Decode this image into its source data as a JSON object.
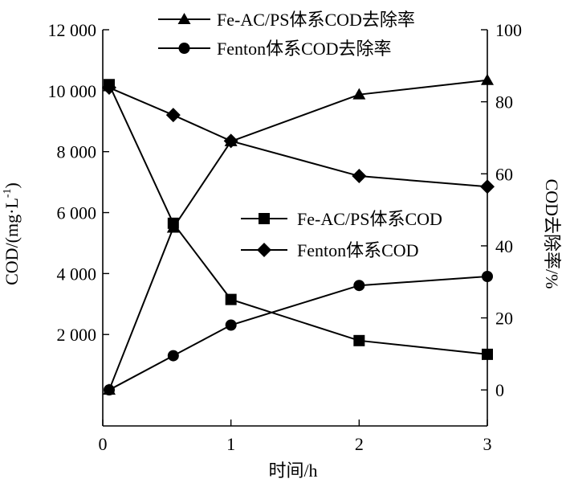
{
  "chart_data": {
    "type": "line",
    "xlabel": "时间/h",
    "ylabel_left": "COD/(mg·L",
    "ylabel_left_sup": "-1",
    "ylabel_left_tail": ")",
    "ylabel_right": "COD去除率/%",
    "xlim": [
      0,
      3
    ],
    "ylim_left": [
      -1000,
      12000
    ],
    "ylim_right": [
      -10,
      100
    ],
    "x_ticks": [
      0,
      1,
      2,
      3
    ],
    "x_tick_labels": [
      "0",
      "1",
      "2",
      "3"
    ],
    "y_left_ticks": [
      2000,
      4000,
      6000,
      8000,
      10000,
      12000
    ],
    "y_left_tick_labels": [
      "2 000",
      "4 000",
      "6 000",
      "8 000",
      "10 000",
      "12 000"
    ],
    "y_right_ticks": [
      0,
      20,
      40,
      60,
      80,
      100
    ],
    "y_right_tick_labels": [
      "0",
      "20",
      "40",
      "60",
      "80",
      "100"
    ],
    "grid": false,
    "series": [
      {
        "name": "Fe-AC/PS体系COD去除率",
        "axis": "right",
        "marker": "triangle",
        "x": [
          0.05,
          0.55,
          1,
          2,
          3
        ],
        "y": [
          0,
          45,
          69,
          82,
          86
        ]
      },
      {
        "name": "Fenton体系COD去除率",
        "axis": "right",
        "marker": "circle",
        "x": [
          0.05,
          0.55,
          1,
          2,
          3
        ],
        "y": [
          0,
          9.5,
          18,
          29,
          31.5
        ]
      },
      {
        "name": "Fe-AC/PS体系COD",
        "axis": "left",
        "marker": "square",
        "x": [
          0.05,
          0.55,
          1,
          2,
          3
        ],
        "y": [
          10200,
          5650,
          3150,
          1800,
          1350
        ]
      },
      {
        "name": "Fenton体系COD",
        "axis": "left",
        "marker": "diamond",
        "x": [
          0.05,
          0.55,
          1,
          2,
          3
        ],
        "y": [
          10100,
          9200,
          8350,
          7200,
          6850
        ]
      }
    ]
  }
}
